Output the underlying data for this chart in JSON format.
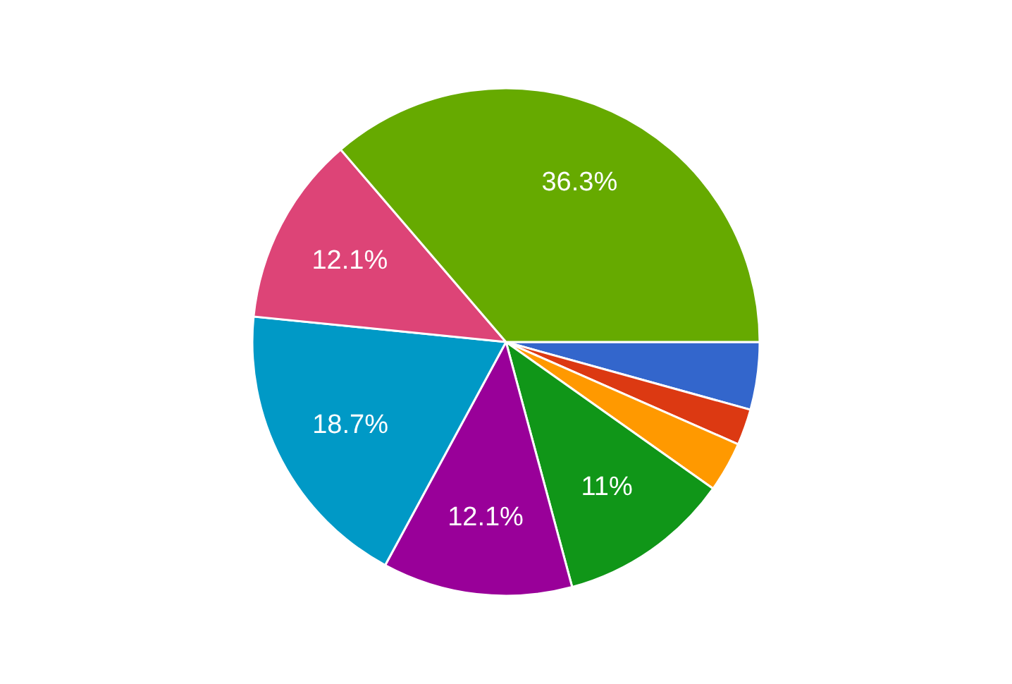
{
  "chart_data": {
    "type": "pie",
    "categories": [
      null,
      null,
      null,
      null,
      null,
      null,
      null,
      null
    ],
    "values": [
      4.3,
      2.3,
      3.2,
      11,
      12.1,
      18.7,
      12.1,
      36.3
    ],
    "colors": [
      "#3366cc",
      "#dc3912",
      "#ff9900",
      "#109618",
      "#990099",
      "#0099c6",
      "#dd4477",
      "#66aa00"
    ],
    "value_labels": [
      null,
      null,
      null,
      "11%",
      "12.1%",
      "18.7%",
      "12.1%",
      "36.3%"
    ]
  }
}
